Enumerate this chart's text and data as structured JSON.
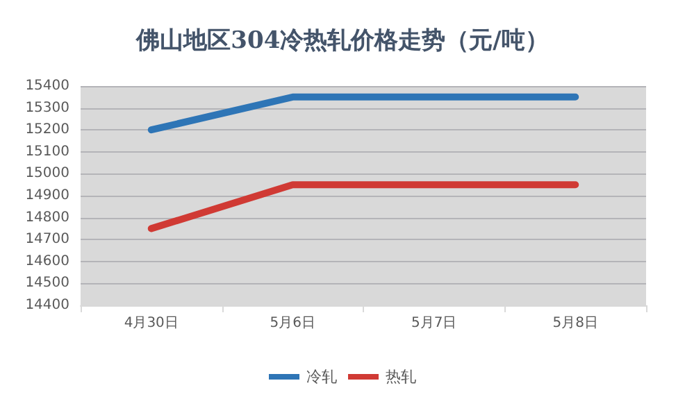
{
  "chart_data": {
    "type": "line",
    "title": "佛山地区304冷热轧价格走势（元/吨）",
    "categories": [
      "4月30日",
      "5月6日",
      "5月7日",
      "5月8日"
    ],
    "series": [
      {
        "name": "冷轧",
        "color": "#2e75b6",
        "values": [
          15200,
          15350,
          15350,
          15350
        ]
      },
      {
        "name": "热轧",
        "color": "#d03a34",
        "values": [
          14750,
          14950,
          14950,
          14950
        ]
      }
    ],
    "ylim": [
      14400,
      15400
    ],
    "yticks": [
      14400,
      14500,
      14600,
      14700,
      14800,
      14900,
      15000,
      15100,
      15200,
      15300,
      15400
    ],
    "grid": "y",
    "legend": "bottom",
    "marker": "none",
    "line_style": "solid"
  }
}
